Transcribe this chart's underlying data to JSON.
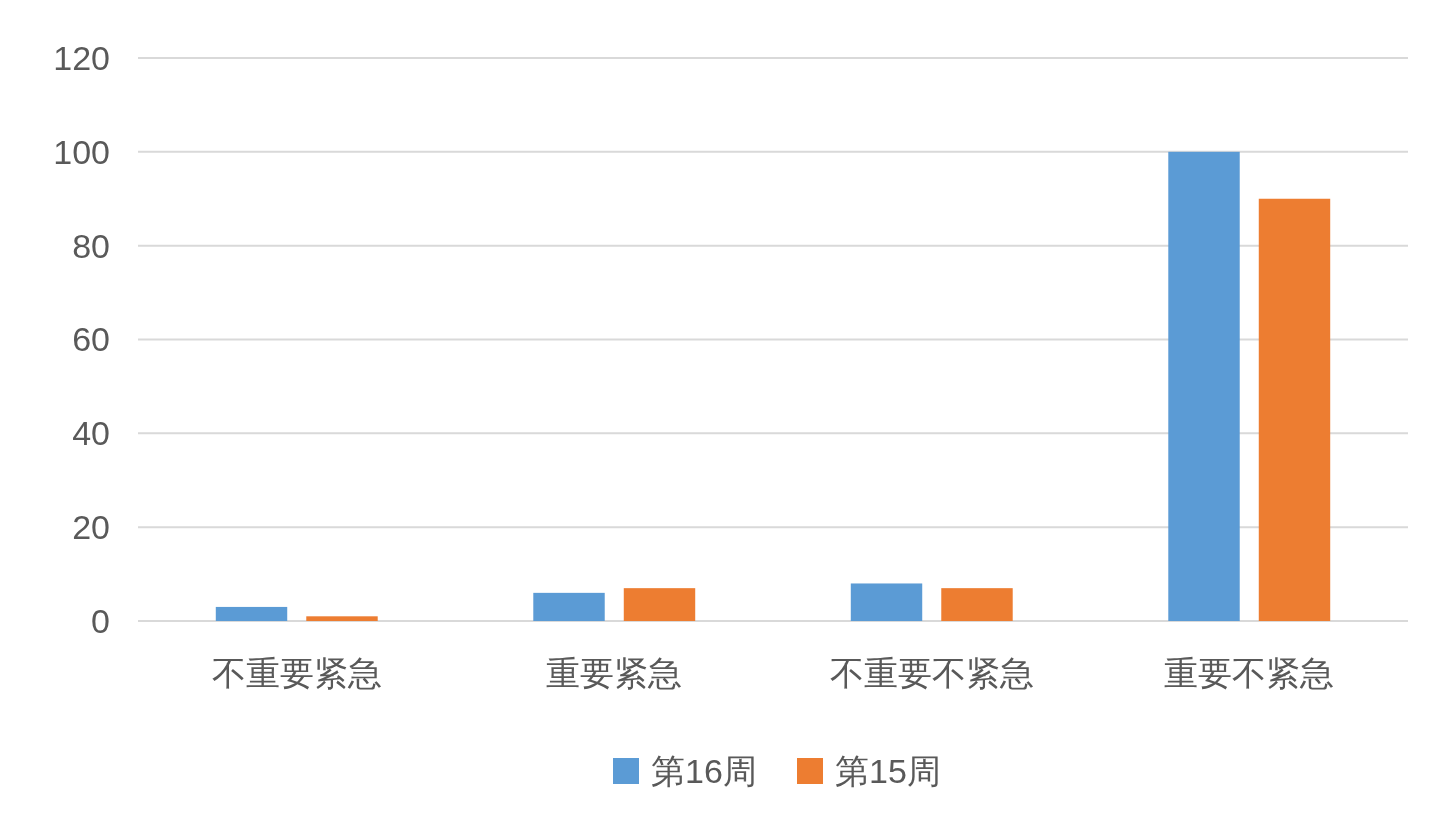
{
  "chart_data": {
    "type": "bar",
    "categories": [
      "不重要紧急",
      "重要紧急",
      "不重要不紧急",
      "重要不紧急"
    ],
    "series": [
      {
        "name": "第16周",
        "color": "#5b9bd5",
        "values": [
          3,
          6,
          8,
          100
        ]
      },
      {
        "name": "第15周",
        "color": "#ed7d31",
        "values": [
          1,
          7,
          7,
          90
        ]
      }
    ],
    "ylim": [
      0,
      120
    ],
    "yticks": [
      0,
      20,
      40,
      60,
      80,
      100,
      120
    ],
    "grid": "y",
    "legend": "bottom"
  }
}
